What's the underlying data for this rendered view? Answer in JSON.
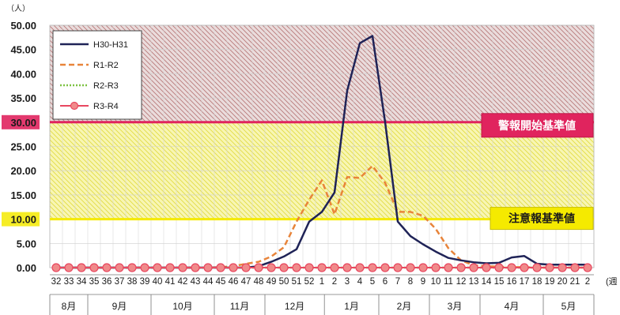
{
  "chart_data": {
    "type": "line",
    "unit_label": "（人）",
    "x_axis_suffix": "(週",
    "ylim": [
      0,
      50
    ],
    "yticks": [
      "0.00",
      "5.00",
      "10.00",
      "15.00",
      "20.00",
      "25.00",
      "30.00",
      "35.00",
      "40.00",
      "45.00",
      "50.00"
    ],
    "highlight_ticks": [
      "10.00",
      "30.00"
    ],
    "x_labels": [
      "32",
      "33",
      "34",
      "35",
      "36",
      "37",
      "38",
      "39",
      "40",
      "41",
      "42",
      "43",
      "44",
      "45",
      "46",
      "47",
      "48",
      "49",
      "50",
      "51",
      "52",
      "1",
      "2",
      "3",
      "4",
      "5",
      "6",
      "7",
      "8",
      "9",
      "10",
      "11",
      "12",
      "13",
      "14",
      "15",
      "16",
      "17",
      "18",
      "19",
      "20",
      "21",
      "2"
    ],
    "months": [
      {
        "label": "8月",
        "span": 3
      },
      {
        "label": "9月",
        "span": 5
      },
      {
        "label": "10月",
        "span": 5
      },
      {
        "label": "11月",
        "span": 4
      },
      {
        "label": "12月",
        "span": 4.7
      },
      {
        "label": "1月",
        "span": 4.3
      },
      {
        "label": "2月",
        "span": 4
      },
      {
        "label": "3月",
        "span": 4
      },
      {
        "label": "4月",
        "span": 5
      },
      {
        "label": "5月",
        "span": 4
      }
    ],
    "thresholds": [
      {
        "name": "警報開始基準値",
        "value": 30,
        "color": "#e0245e"
      },
      {
        "name": "注意報基準値",
        "value": 10,
        "color": "#f5ea00"
      }
    ],
    "series": [
      {
        "name": "H30-H31",
        "color": "#1f2357",
        "dash": "solid",
        "marker": false,
        "values": [
          0,
          0,
          0,
          0,
          0,
          0,
          0,
          0,
          0,
          0,
          0,
          0,
          0,
          0,
          0,
          0,
          0.3,
          1.2,
          2.3,
          3.8,
          9.5,
          11.5,
          15.5,
          36.5,
          46.3,
          47.8,
          30,
          9.5,
          6.5,
          4.8,
          3.3,
          2,
          1.5,
          1.1,
          0.9,
          1.0,
          2.1,
          2.4,
          0.8,
          0.6,
          0.6,
          0.6,
          0.6
        ]
      },
      {
        "name": "R1-R2",
        "color": "#e8843a",
        "dash": "dashed",
        "marker": false,
        "values": [
          0,
          0,
          0,
          0,
          0,
          0,
          0,
          0,
          0,
          0,
          0,
          0,
          0,
          0.1,
          0.3,
          0.8,
          1.2,
          2.3,
          4.2,
          9.5,
          14,
          18,
          11,
          18.7,
          18.5,
          21,
          17.5,
          11.5,
          11.5,
          10.7,
          8,
          4,
          1.5,
          0.5,
          0.3,
          0.2,
          0.1,
          0.1,
          0,
          0,
          0,
          0,
          0
        ]
      },
      {
        "name": "R2-R3",
        "color": "#7ec242",
        "dash": "dotted",
        "marker": false,
        "values": [
          0,
          0,
          0,
          0,
          0,
          0,
          0,
          0,
          0,
          0,
          0,
          0,
          0,
          0,
          0,
          0,
          0,
          0,
          0,
          0,
          0,
          0,
          0,
          0,
          0,
          0,
          0,
          0,
          0,
          0,
          0,
          0,
          0,
          0,
          0,
          0,
          0,
          0,
          0,
          0,
          0,
          0,
          0
        ]
      },
      {
        "name": "R3-R4",
        "color": "#e8475f",
        "dash": "solid",
        "marker": true,
        "values": [
          0,
          0,
          0,
          0,
          0,
          0,
          0,
          0,
          0,
          0,
          0,
          0,
          0,
          0,
          0,
          0,
          0,
          0,
          0,
          0,
          0,
          0,
          0,
          0,
          0,
          0,
          0,
          0,
          0,
          0,
          0,
          0,
          0,
          0,
          0,
          0,
          0,
          0,
          0,
          0,
          0,
          0,
          0
        ]
      }
    ]
  }
}
